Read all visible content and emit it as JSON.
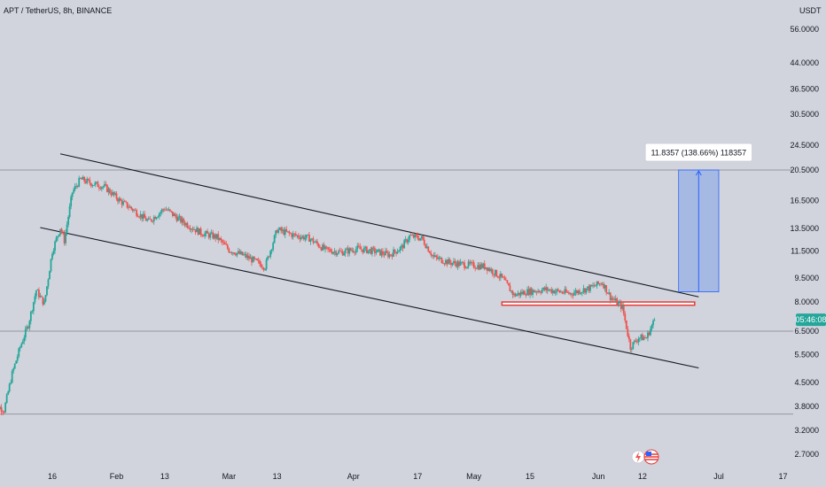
{
  "header": {
    "symbol": "APT / TetherUS, 8h, BINANCE"
  },
  "price_axis": {
    "currency": "USDT",
    "ticks": [
      "56.0000",
      "44.0000",
      "36.5000",
      "30.5000",
      "24.5000",
      "20.5000",
      "16.5000",
      "13.5000",
      "11.5000",
      "9.5000",
      "8.0000",
      "6.5000",
      "5.5000",
      "4.5000",
      "3.8000",
      "3.2000",
      "2.7000"
    ],
    "countdown_label": "05:46:08"
  },
  "time_axis": {
    "ticks": [
      "16",
      "Feb",
      "13",
      "Mar",
      "13",
      "Apr",
      "17",
      "May",
      "15",
      "Jun",
      "12",
      "Jul",
      "17"
    ]
  },
  "measure_label": "11.8357 (138.66%) 118357",
  "colors": {
    "background": "#d1d4dc",
    "up": "#26a69a",
    "down": "#ef5350",
    "trendline": "#131722",
    "hline": "#9598a1",
    "measure_fill": "#9db4e3",
    "measure_stroke": "#2962ff",
    "zone": "#e53935",
    "countdown_bg": "#26a69a"
  },
  "chart_data": {
    "type": "candlestick",
    "title": "APT / TetherUS, 8h, BINANCE",
    "ylabel": "USDT",
    "y_scale": "log",
    "ylim": [
      2.5,
      64
    ],
    "x_ticks": [
      "16",
      "Feb",
      "13",
      "Mar",
      "13",
      "Apr",
      "17",
      "May",
      "15",
      "Jun",
      "12",
      "Jul",
      "17"
    ],
    "price_path": [
      [
        "2023-01-01",
        3.9
      ],
      [
        "2023-01-04",
        3.7
      ],
      [
        "2023-01-06",
        4.8
      ],
      [
        "2023-01-08",
        5.8
      ],
      [
        "2023-01-10",
        6.8
      ],
      [
        "2023-01-12",
        8.7
      ],
      [
        "2023-01-14",
        7.9
      ],
      [
        "2023-01-16",
        11.5
      ],
      [
        "2023-01-18",
        13.6
      ],
      [
        "2023-01-19",
        12.4
      ],
      [
        "2023-01-21",
        17.5
      ],
      [
        "2023-01-23",
        19.2
      ],
      [
        "2023-01-26",
        18.6
      ],
      [
        "2023-01-29",
        18.2
      ],
      [
        "2023-02-02",
        16.4
      ],
      [
        "2023-02-05",
        15.5
      ],
      [
        "2023-02-09",
        14.2
      ],
      [
        "2023-02-13",
        15.6
      ],
      [
        "2023-02-17",
        14.3
      ],
      [
        "2023-02-22",
        13.1
      ],
      [
        "2023-02-26",
        12.7
      ],
      [
        "2023-03-01",
        11.6
      ],
      [
        "2023-03-05",
        11.1
      ],
      [
        "2023-03-10",
        10.3
      ],
      [
        "2023-03-13",
        13.4
      ],
      [
        "2023-03-17",
        12.9
      ],
      [
        "2023-03-21",
        12.6
      ],
      [
        "2023-03-25",
        11.6
      ],
      [
        "2023-03-29",
        11.4
      ],
      [
        "2023-04-02",
        11.7
      ],
      [
        "2023-04-06",
        11.5
      ],
      [
        "2023-04-10",
        11.2
      ],
      [
        "2023-04-13",
        11.8
      ],
      [
        "2023-04-15",
        12.8
      ],
      [
        "2023-04-18",
        12.6
      ],
      [
        "2023-04-21",
        11.0
      ],
      [
        "2023-04-25",
        10.6
      ],
      [
        "2023-04-30",
        10.4
      ],
      [
        "2023-05-04",
        10.3
      ],
      [
        "2023-05-08",
        9.5
      ],
      [
        "2023-05-11",
        8.4
      ],
      [
        "2023-05-14",
        8.6
      ],
      [
        "2023-05-19",
        8.75
      ],
      [
        "2023-05-25",
        8.5
      ],
      [
        "2023-05-30",
        8.85
      ],
      [
        "2023-06-02",
        9.2
      ],
      [
        "2023-06-04",
        8.3
      ],
      [
        "2023-06-07",
        7.7
      ],
      [
        "2023-06-09",
        5.8
      ],
      [
        "2023-06-11",
        6.2
      ],
      [
        "2023-06-13",
        6.2
      ],
      [
        "2023-06-15",
        7.05
      ]
    ],
    "last_price": 7.05,
    "horizontal_lines": [
      20.5,
      6.5,
      3.6
    ],
    "resistance_zone": [
      7.82,
      8.0
    ],
    "descending_channel": {
      "upper": [
        [
          "2023-01-18",
          23.0
        ],
        [
          "2023-06-26",
          8.3
        ]
      ],
      "lower": [
        [
          "2023-01-13",
          13.6
        ],
        [
          "2023-06-26",
          5.0
        ]
      ]
    },
    "measure": {
      "from": 8.6,
      "to": 20.5,
      "label": "11.8357 (138.66%) 118357"
    }
  }
}
